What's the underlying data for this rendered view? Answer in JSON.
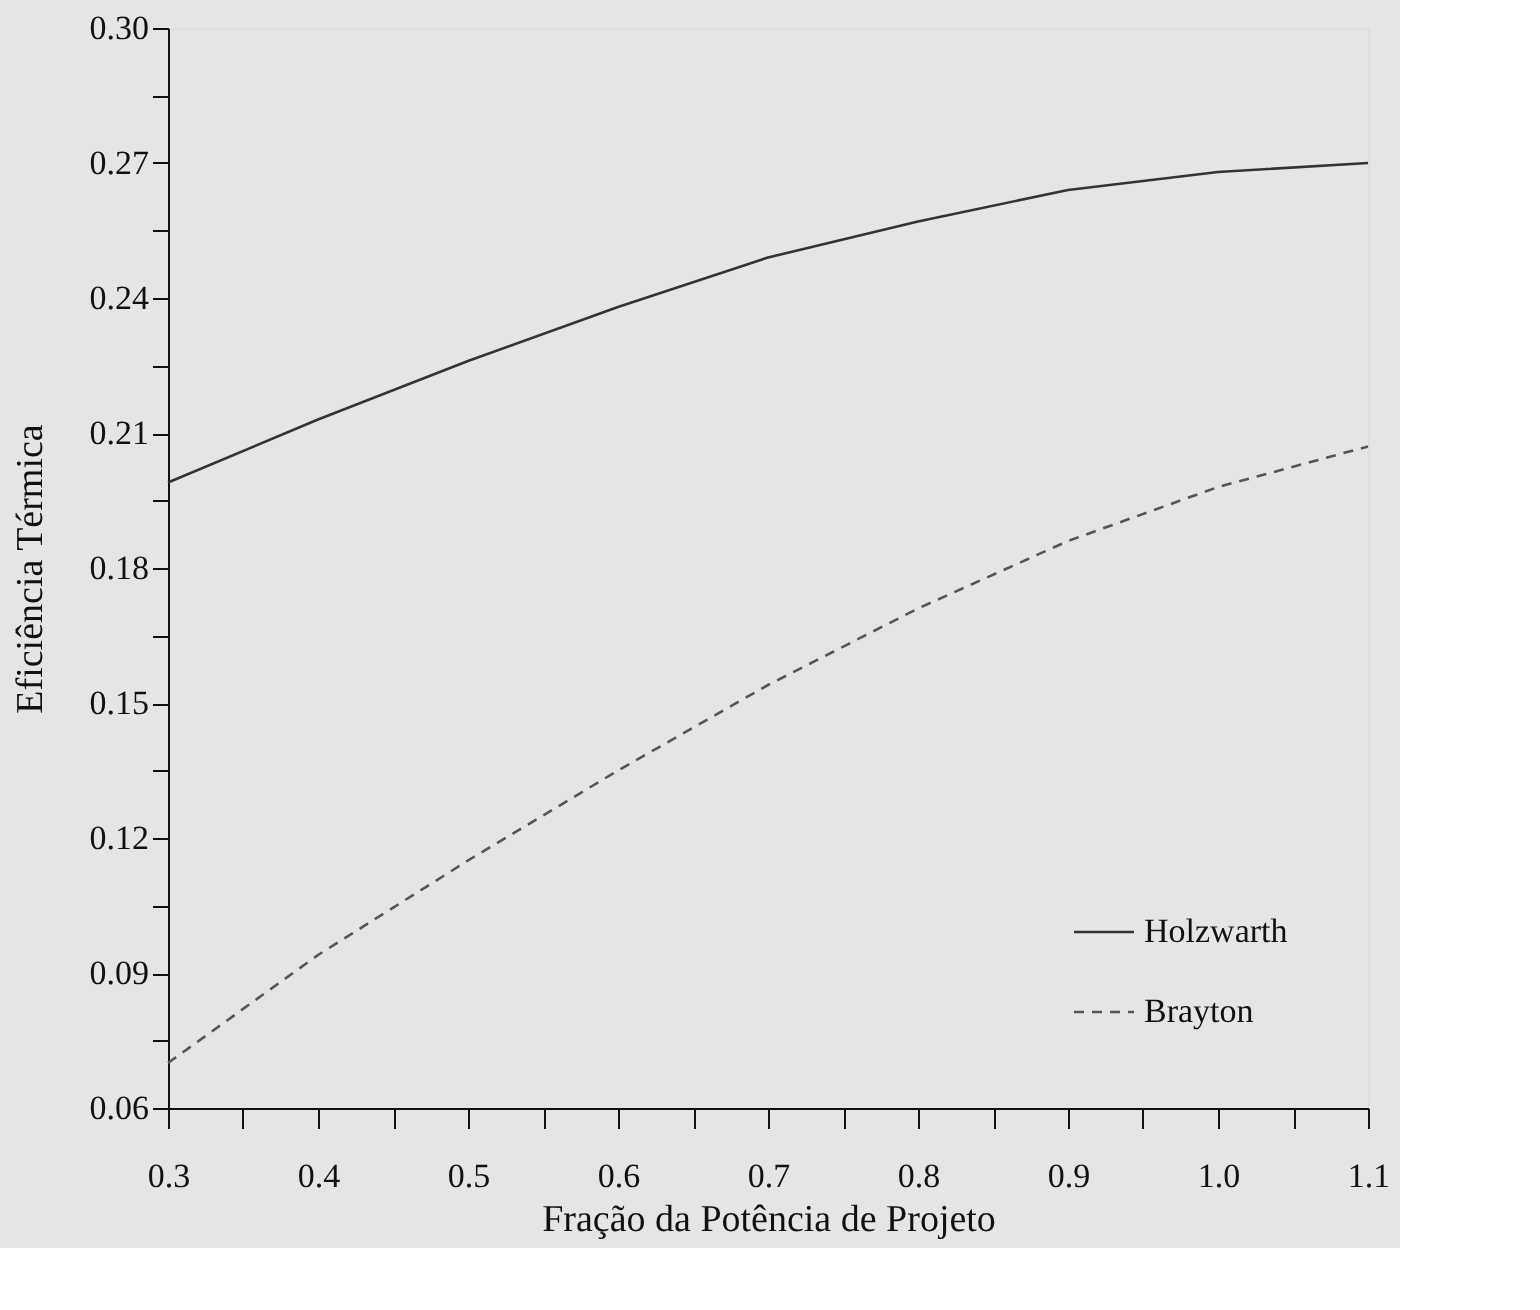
{
  "chart_data": {
    "type": "line",
    "xlabel": "Fração da Potência de Projeto",
    "ylabel": "Eficiência Térmica",
    "x": [
      0.3,
      0.4,
      0.5,
      0.6,
      0.7,
      0.8,
      0.9,
      1.0,
      1.1
    ],
    "series": [
      {
        "name": "Holzwarth",
        "color": "#333333",
        "line_style": "solid",
        "values": [
          0.199,
          0.213,
          0.226,
          0.238,
          0.249,
          0.257,
          0.264,
          0.268,
          0.27
        ]
      },
      {
        "name": "Brayton",
        "color": "#555555",
        "line_style": "dashed",
        "values": [
          0.07,
          0.094,
          0.115,
          0.135,
          0.154,
          0.171,
          0.186,
          0.198,
          0.207
        ]
      }
    ],
    "xlim": [
      0.3,
      1.1
    ],
    "ylim": [
      0.06,
      0.3
    ],
    "xticks": [
      {
        "value": 0.3,
        "label": "0.3"
      },
      {
        "value": 0.35,
        "label": null
      },
      {
        "value": 0.4,
        "label": "0.4"
      },
      {
        "value": 0.45,
        "label": null
      },
      {
        "value": 0.5,
        "label": "0.5"
      },
      {
        "value": 0.55,
        "label": null
      },
      {
        "value": 0.6,
        "label": "0.6"
      },
      {
        "value": 0.65,
        "label": null
      },
      {
        "value": 0.7,
        "label": "0.7"
      },
      {
        "value": 0.75,
        "label": null
      },
      {
        "value": 0.8,
        "label": "0.8"
      },
      {
        "value": 0.85,
        "label": null
      },
      {
        "value": 0.9,
        "label": "0.9"
      },
      {
        "value": 0.95,
        "label": null
      },
      {
        "value": 1.0,
        "label": "1.0"
      },
      {
        "value": 1.05,
        "label": null
      },
      {
        "value": 1.1,
        "label": "1.1"
      }
    ],
    "yticks": [
      {
        "value": 0.06,
        "label": "0.06"
      },
      {
        "value": 0.075,
        "label": null
      },
      {
        "value": 0.09,
        "label": "0.09"
      },
      {
        "value": 0.105,
        "label": null
      },
      {
        "value": 0.12,
        "label": "0.12"
      },
      {
        "value": 0.135,
        "label": null
      },
      {
        "value": 0.15,
        "label": "0.15"
      },
      {
        "value": 0.165,
        "label": null
      },
      {
        "value": 0.18,
        "label": "0.18"
      },
      {
        "value": 0.195,
        "label": null
      },
      {
        "value": 0.21,
        "label": "0.21"
      },
      {
        "value": 0.225,
        "label": null
      },
      {
        "value": 0.24,
        "label": "0.24"
      },
      {
        "value": 0.255,
        "label": null
      },
      {
        "value": 0.27,
        "label": "0.27"
      },
      {
        "value": 0.285,
        "label": null
      },
      {
        "value": 0.3,
        "label": "0.30"
      }
    ],
    "grid": false,
    "legend": "bottom right",
    "marker": "none"
  }
}
